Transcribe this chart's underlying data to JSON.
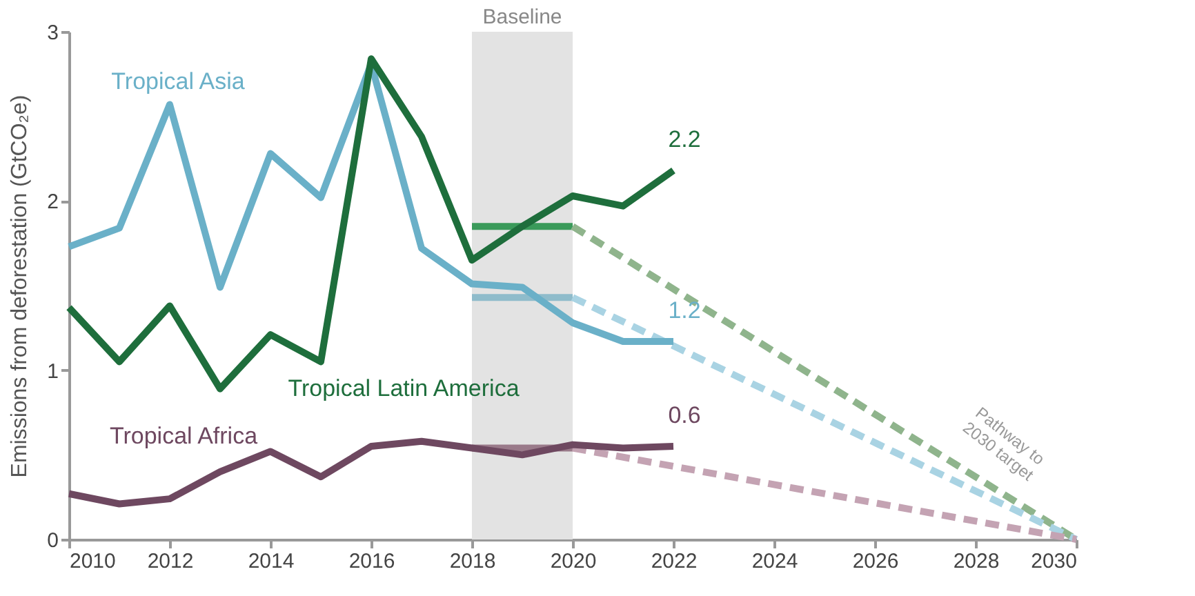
{
  "chart_data": {
    "type": "line",
    "ylabel": "Emissions from deforestation (GtCO₂e)",
    "xlim": [
      2010,
      2030
    ],
    "xticks": [
      2010,
      2012,
      2014,
      2016,
      2018,
      2020,
      2022,
      2024,
      2026,
      2028,
      2030
    ],
    "ylim": [
      0,
      3
    ],
    "yticks": [
      0,
      1,
      2,
      3
    ],
    "grid": false,
    "line_style": "solid",
    "marker": "none",
    "x": [
      2010,
      2011,
      2012,
      2013,
      2014,
      2015,
      2016,
      2017,
      2018,
      2019,
      2020,
      2021,
      2022
    ],
    "series": [
      {
        "name": "Tropical Asia",
        "color": "#6ab0c8",
        "values": [
          1.73,
          1.84,
          2.57,
          1.49,
          2.28,
          2.02,
          2.81,
          1.72,
          1.51,
          1.49,
          1.28,
          1.17,
          1.17
        ],
        "value_labels": [
          null,
          null,
          null,
          null,
          null,
          null,
          null,
          null,
          null,
          null,
          null,
          null,
          "1.2"
        ]
      },
      {
        "name": "Tropical Latin America",
        "color": "#1e6e3c",
        "values": [
          1.37,
          1.05,
          1.38,
          0.89,
          1.21,
          1.05,
          2.84,
          2.38,
          1.65,
          1.85,
          2.03,
          1.97,
          2.18
        ],
        "value_labels": [
          null,
          null,
          null,
          null,
          null,
          null,
          null,
          null,
          null,
          null,
          null,
          null,
          "2.2"
        ]
      },
      {
        "name": "Tropical Africa",
        "color": "#6e4860",
        "values": [
          0.27,
          0.21,
          0.24,
          0.4,
          0.52,
          0.37,
          0.55,
          0.58,
          0.54,
          0.5,
          0.56,
          0.54,
          0.55
        ],
        "value_labels": [
          null,
          null,
          null,
          null,
          null,
          null,
          null,
          null,
          null,
          null,
          null,
          null,
          "0.6"
        ]
      },
      {
        "type": "line",
        "color": "#3a9a5a",
        "x": [
          2018,
          2020
        ],
        "values": [
          1.85,
          1.85
        ]
      },
      {
        "type": "line",
        "color": "#8fbccb",
        "x": [
          2018,
          2020
        ],
        "values": [
          1.43,
          1.43
        ]
      },
      {
        "type": "line",
        "color": "#9a7a8a",
        "x": [
          2018,
          2020
        ],
        "values": [
          0.54,
          0.54
        ]
      },
      {
        "type": "line",
        "color": "#8fb48c",
        "line_style": "dashed",
        "x": [
          2020,
          2030
        ],
        "values": [
          1.85,
          0
        ]
      },
      {
        "type": "line",
        "color": "#a9d3e3",
        "line_style": "dashed",
        "x": [
          2020,
          2030
        ],
        "values": [
          1.43,
          0
        ]
      },
      {
        "type": "line",
        "color": "#c4a3b3",
        "line_style": "dashed",
        "x": [
          2020,
          2030
        ],
        "values": [
          0.54,
          0
        ]
      }
    ],
    "bands": [
      {
        "axis": "x",
        "from": 2018,
        "to": 2020,
        "label": "Baseline",
        "color": "#e3e3e3"
      }
    ],
    "annotations": [
      "Pathway to 2030 target"
    ]
  }
}
